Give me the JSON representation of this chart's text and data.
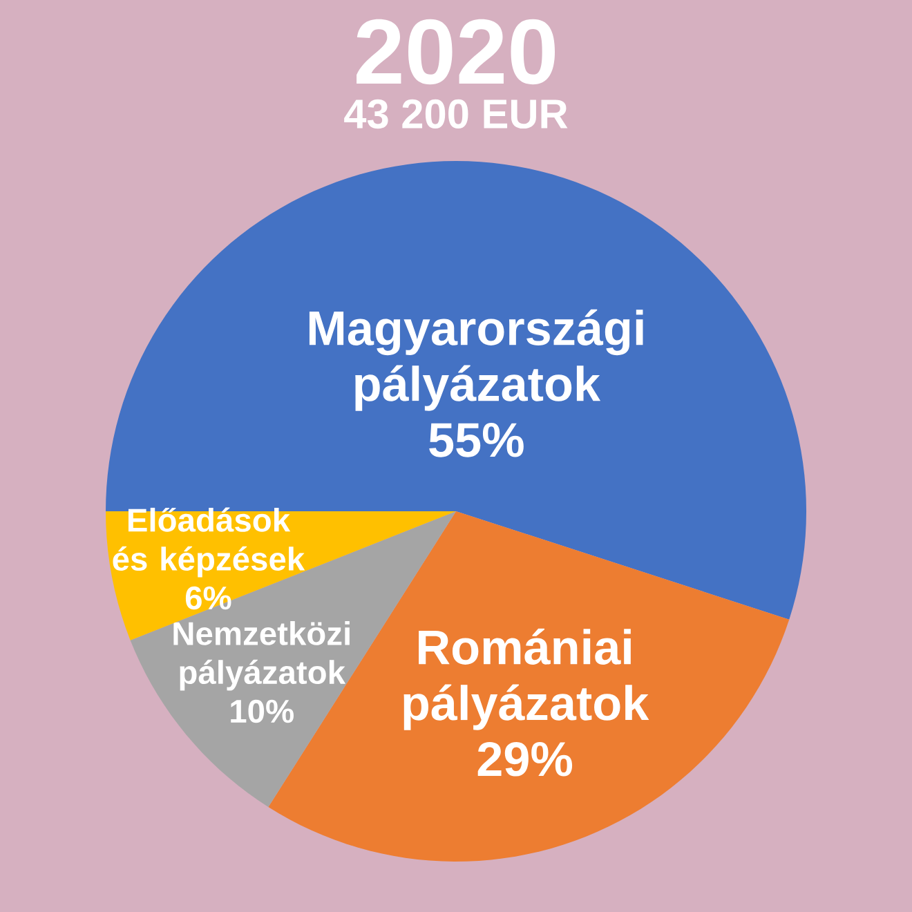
{
  "chart_data": {
    "type": "pie",
    "title": "2020",
    "subtitle": "43 200 EUR",
    "categories": [
      "Magyarországi pályázatok",
      "Romániai pályázatok",
      "Nemzetközi pályázatok",
      "Előadások és képzések"
    ],
    "values": [
      55,
      29,
      10,
      6
    ],
    "colors": [
      "#4472c4",
      "#ed7d31",
      "#a5a5a5",
      "#ffc000"
    ],
    "value_labels": [
      "55%",
      "29%",
      "10%",
      "6%"
    ]
  }
}
